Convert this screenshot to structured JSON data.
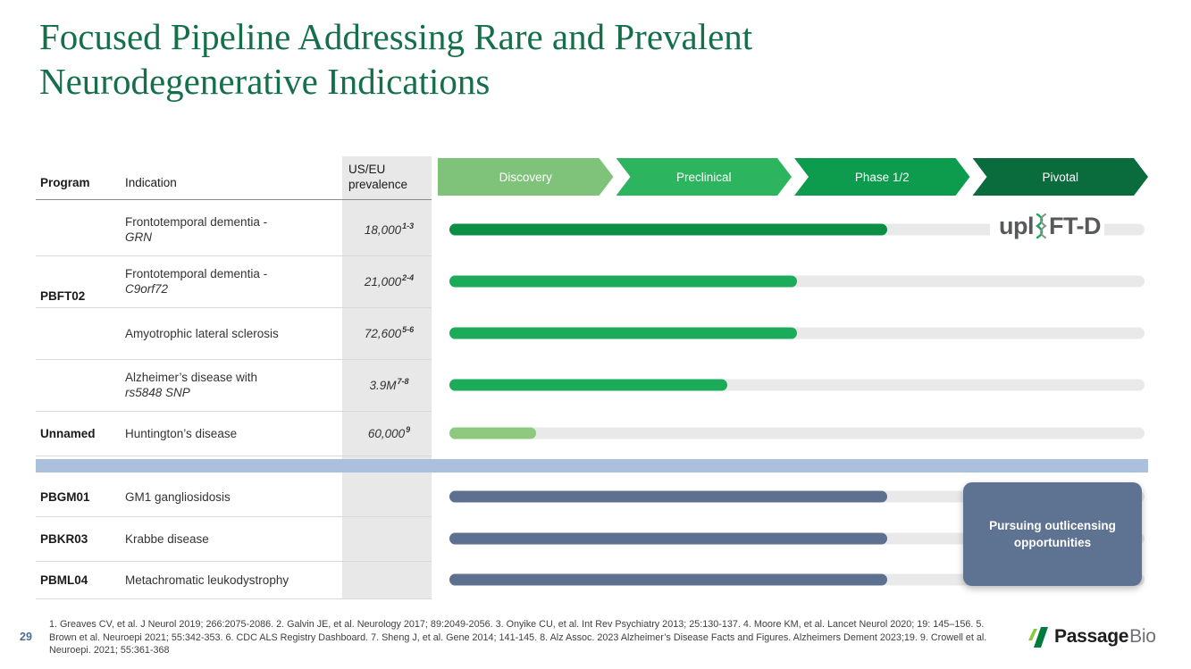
{
  "title": {
    "line1": "Focused Pipeline Addressing Rare and Prevalent",
    "line2": "Neurodegenerative Indications"
  },
  "columns": {
    "program": "Program",
    "indication": "Indication",
    "prevalence_line1": "US/EU",
    "prevalence_line2": "prevalence"
  },
  "phases": [
    {
      "label": "Discovery",
      "color": "#7ec379"
    },
    {
      "label": "Preclinical",
      "color": "#2cb45e"
    },
    {
      "label": "Phase 1/2",
      "color": "#0d9b4d"
    },
    {
      "label": "Pivotal",
      "color": "#0a6c3c"
    }
  ],
  "group_label": "PBFT02",
  "rows": [
    {
      "program": "",
      "indication_line1": "Frontotemporal dementia -",
      "indication_line2": "GRN",
      "prevalence": "18,000",
      "prevalence_sup": "1-3",
      "bar": {
        "pct": 63,
        "color": "#0a8f45"
      }
    },
    {
      "program": "",
      "indication_line1": "Frontotemporal dementia -",
      "indication_line2": "C9orf72",
      "prevalence": "21,000",
      "prevalence_sup": "2-4",
      "bar": {
        "pct": 50,
        "color": "#1cab58"
      }
    },
    {
      "program": "",
      "indication_line1": "Amyotrophic lateral sclerosis",
      "indication_line2": "",
      "prevalence": "72,600",
      "prevalence_sup": "5-6",
      "bar": {
        "pct": 50,
        "color": "#1cab58"
      }
    },
    {
      "program": "",
      "indication_line1": "Alzheimer’s disease with",
      "indication_line2": "rs5848 SNP",
      "prevalence": "3.9M",
      "prevalence_sup": "7-8",
      "bar": {
        "pct": 40,
        "color": "#1cab58"
      }
    },
    {
      "program": "Unnamed",
      "indication_line1": "Huntington’s disease",
      "indication_line2": "",
      "prevalence": "60,000",
      "prevalence_sup": "9",
      "bar": {
        "pct": 12.5,
        "color": "#8dc97e"
      }
    },
    {
      "program": "PBGM01",
      "indication_line1": "GM1 gangliosidosis",
      "indication_line2": "",
      "prevalence": "",
      "prevalence_sup": "",
      "bar": {
        "pct": 63,
        "color": "#5d7090"
      }
    },
    {
      "program": "PBKR03",
      "indication_line1": "Krabbe disease",
      "indication_line2": "",
      "prevalence": "",
      "prevalence_sup": "",
      "bar": {
        "pct": 63,
        "color": "#5d7090"
      }
    },
    {
      "program": "PBML04",
      "indication_line1": "Metachromatic leukodystrophy",
      "indication_line2": "",
      "prevalence": "",
      "prevalence_sup": "",
      "bar": {
        "pct": 63,
        "color": "#5d7090"
      }
    }
  ],
  "callout": {
    "line1": "Pursuing outlicensing",
    "line2": "opportunities"
  },
  "uplift_logo": {
    "left": "upl",
    "right": "FT-D"
  },
  "footer": {
    "page_number": "29",
    "references": "1. Greaves CV, et al. J Neurol 2019; 266:2075-2086. 2. Galvin JE, et al. Neurology 2017; 89:2049-2056. 3. Onyike CU, et al. Int Rev Psychiatry 2013; 25:130-137. 4. Moore KM, et al. Lancet Neurol 2020; 19: 145–156. 5. Brown et al. Neuroepi 2021; 55:342-353. 6. CDC ALS Registry Dashboard. 7. Sheng J, et al. Gene 2014; 141-145. 8. Alz Assoc. 2023 Alzheimer’s Disease Facts and Figures. Alzheimers Dement 2023;19. 9. Crowell et al. Neuroepi. 2021; 55:361-368"
  },
  "brand": {
    "name_bold": "Passage",
    "name_light": "Bio",
    "mark_dark": "#007a3d",
    "mark_light": "#8dc63f"
  }
}
